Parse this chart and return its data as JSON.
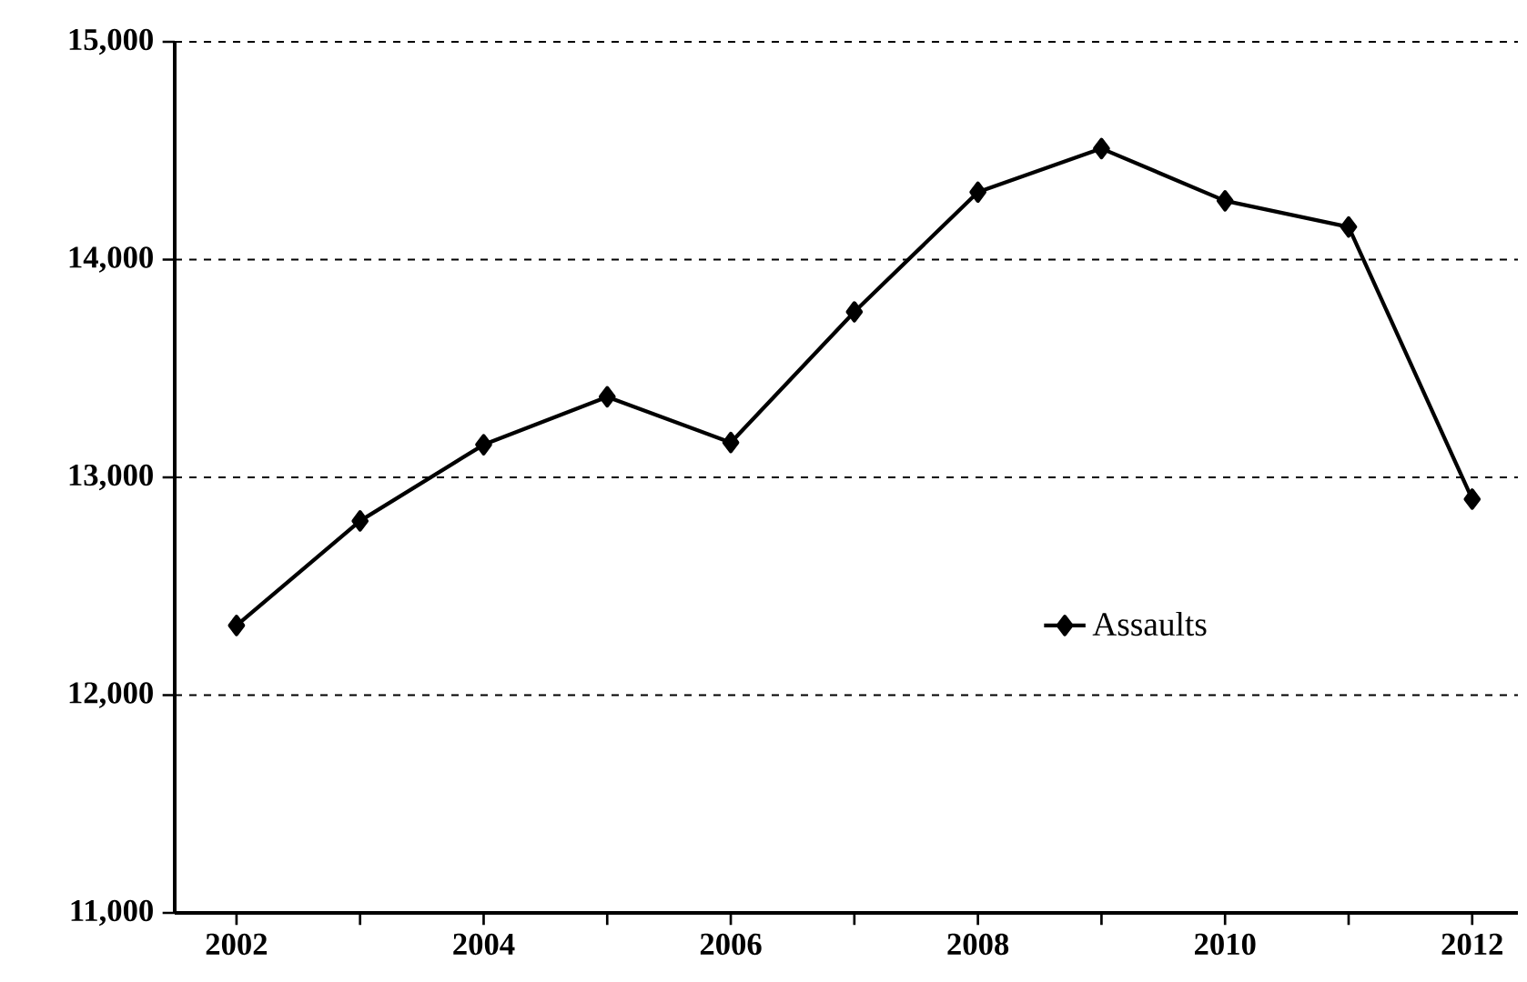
{
  "chart_data": {
    "type": "line",
    "categories": [
      "2002",
      null,
      "2004",
      null,
      "2006",
      null,
      "2008",
      null,
      "2010",
      null,
      "2012"
    ],
    "series": [
      {
        "name": "Assaults",
        "color": "#000000",
        "values": [
          12320,
          12800,
          13150,
          13370,
          13160,
          13760,
          14310,
          14510,
          14270,
          14150,
          12900
        ]
      }
    ],
    "ylim": [
      11000,
      15000
    ],
    "yticks": [
      {
        "value": 11000,
        "label": "11,000"
      },
      {
        "value": 12000,
        "label": "12,000"
      },
      {
        "value": 13000,
        "label": "13,000"
      },
      {
        "value": 14000,
        "label": "14,000"
      },
      {
        "value": 15000,
        "label": "15,000"
      }
    ],
    "grid": "y",
    "legend": "right",
    "marker": "diamond",
    "line_style": "solid"
  }
}
